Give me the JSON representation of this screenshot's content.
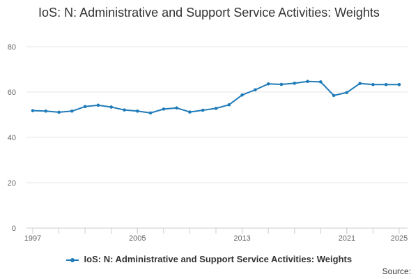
{
  "chart_data": {
    "type": "line",
    "title": "IoS: N: Administrative and Support Service Activities: Weights",
    "xlabel": "",
    "ylabel": "",
    "x": [
      1997,
      1998,
      1999,
      2000,
      2001,
      2002,
      2003,
      2004,
      2005,
      2006,
      2007,
      2008,
      2009,
      2010,
      2011,
      2012,
      2013,
      2014,
      2015,
      2016,
      2017,
      2018,
      2019,
      2020,
      2021,
      2022,
      2023,
      2024,
      2025
    ],
    "series": [
      {
        "name": "IoS: N: Administrative and Support Service Activities: Weights",
        "color": "#1f7bb8",
        "values": [
          51.8,
          51.6,
          51.1,
          51.6,
          53.6,
          54.2,
          53.4,
          52.1,
          51.6,
          50.8,
          52.5,
          53.0,
          51.2,
          52.0,
          52.8,
          54.4,
          58.7,
          61.0,
          63.6,
          63.4,
          63.9,
          64.7,
          64.5,
          58.5,
          59.8,
          63.8,
          63.3,
          63.3,
          63.3
        ]
      }
    ],
    "ylim": [
      0,
      80
    ],
    "yticks": [
      0,
      20,
      40,
      60,
      80
    ],
    "xticks": [
      1997,
      2005,
      2013,
      2021,
      2025
    ],
    "grid": true,
    "legend_position": "bottom"
  },
  "source_label": "Source:"
}
